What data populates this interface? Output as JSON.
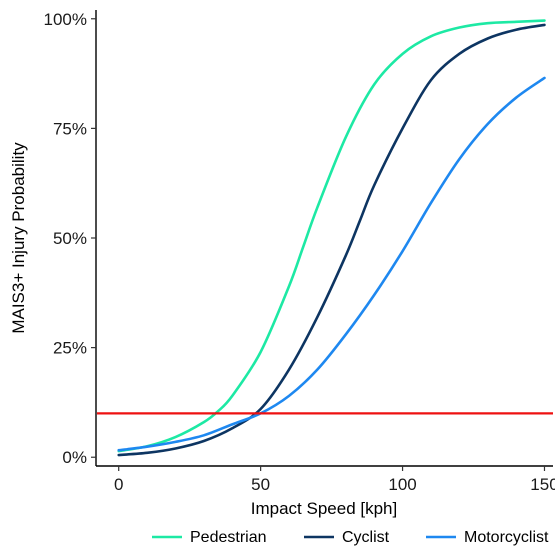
{
  "chart_data": {
    "type": "line",
    "xlabel": "Impact Speed [kph]",
    "ylabel": "MAIS3+ Injury Probability",
    "xlim": [
      -8,
      153
    ],
    "ylim": [
      -0.02,
      1.02
    ],
    "x_ticks": [
      {
        "value": 0,
        "label": "0"
      },
      {
        "value": 50,
        "label": "50"
      },
      {
        "value": 100,
        "label": "100"
      },
      {
        "value": 150,
        "label": "150"
      }
    ],
    "y_ticks": [
      {
        "value": 0,
        "label": "0%"
      },
      {
        "value": 0.25,
        "label": "25%"
      },
      {
        "value": 0.5,
        "label": "50%"
      },
      {
        "value": 0.75,
        "label": "75%"
      },
      {
        "value": 1,
        "label": "100%"
      }
    ],
    "grid": false,
    "legend_position": "bottom",
    "series": [
      {
        "name": "Pedestrian",
        "color": "#1de9a4",
        "x": [
          0,
          10,
          20,
          30,
          35,
          40,
          50,
          60,
          65,
          70,
          80,
          90,
          100,
          110,
          120,
          130,
          140,
          150
        ],
        "y": [
          0.014,
          0.025,
          0.046,
          0.08,
          0.105,
          0.14,
          0.24,
          0.39,
          0.48,
          0.57,
          0.73,
          0.85,
          0.92,
          0.96,
          0.98,
          0.99,
          0.993,
          0.996
        ]
      },
      {
        "name": "Cyclist",
        "color": "#0d3562",
        "x": [
          0,
          10,
          20,
          30,
          40,
          50,
          60,
          70,
          80,
          85,
          90,
          100,
          110,
          120,
          130,
          140,
          150
        ],
        "y": [
          0.005,
          0.01,
          0.02,
          0.037,
          0.066,
          0.11,
          0.2,
          0.32,
          0.46,
          0.54,
          0.62,
          0.75,
          0.86,
          0.92,
          0.955,
          0.975,
          0.986
        ]
      },
      {
        "name": "Motorcyclist",
        "color": "#1e88f0",
        "x": [
          0,
          10,
          20,
          30,
          40,
          50,
          60,
          70,
          80,
          90,
          100,
          110,
          120,
          130,
          140,
          150
        ],
        "y": [
          0.016,
          0.024,
          0.035,
          0.05,
          0.075,
          0.1,
          0.14,
          0.2,
          0.28,
          0.37,
          0.47,
          0.58,
          0.68,
          0.76,
          0.82,
          0.865
        ]
      }
    ],
    "reference_lines": [
      {
        "type": "horizontal",
        "y": 0.1,
        "color": "#ee1111"
      }
    ]
  }
}
